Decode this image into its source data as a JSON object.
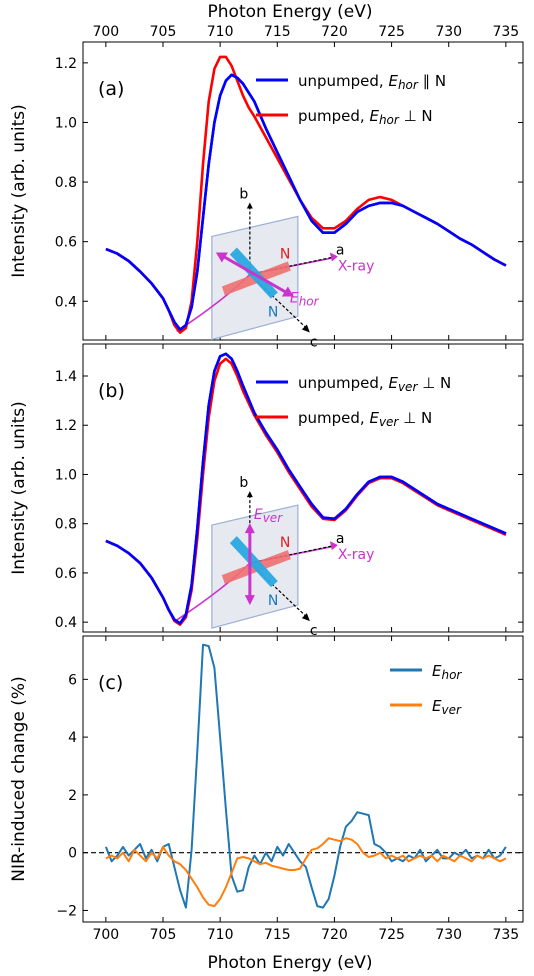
{
  "chart_data": [
    {
      "type": "line",
      "panel_label": "(a)",
      "xlabel_top": "Photon Energy (eV)",
      "ylabel": "Intensity (arb. units)",
      "xlim": [
        698,
        736.5
      ],
      "ylim": [
        0.27,
        1.27
      ],
      "xticks": [
        700,
        705,
        710,
        715,
        720,
        725,
        730,
        735
      ],
      "yticks": [
        0.4,
        0.6,
        0.8,
        1.0,
        1.2
      ],
      "ytick_labels": [
        "0.4",
        "0.6",
        "0.8",
        "1.0",
        "1.2"
      ],
      "legend_position": "top-right",
      "series": [
        {
          "name": "unpumped, Eₕₒᵣ ∥ N",
          "label_main": "unpumped, ",
          "label_italic": "Ehor",
          "label_rel": " ∥ N",
          "color": "#0000ff",
          "x": [
            700,
            701,
            702,
            703,
            704,
            705,
            705.5,
            706,
            706.5,
            707,
            707.5,
            708,
            708.5,
            709,
            709.5,
            710,
            710.5,
            711,
            711.5,
            712,
            712.5,
            713,
            714,
            715,
            716,
            717,
            718,
            719,
            720,
            721,
            722,
            723,
            724,
            725,
            726,
            727,
            728,
            729,
            730,
            731,
            732,
            733,
            734,
            735
          ],
          "y": [
            0.575,
            0.56,
            0.535,
            0.5,
            0.46,
            0.41,
            0.37,
            0.33,
            0.305,
            0.32,
            0.38,
            0.5,
            0.68,
            0.86,
            1.0,
            1.09,
            1.14,
            1.16,
            1.15,
            1.13,
            1.1,
            1.07,
            0.98,
            0.9,
            0.82,
            0.74,
            0.67,
            0.63,
            0.63,
            0.66,
            0.7,
            0.72,
            0.73,
            0.73,
            0.72,
            0.7,
            0.68,
            0.66,
            0.635,
            0.61,
            0.59,
            0.565,
            0.54,
            0.52
          ]
        },
        {
          "name": "pumped, Eₕₒᵣ ⊥ N",
          "label_main": "pumped, ",
          "label_italic": "Ehor",
          "label_rel": " ⊥ N",
          "color": "#ff0000",
          "x": [
            700,
            701,
            702,
            703,
            704,
            705,
            705.5,
            706,
            706.5,
            707,
            707.5,
            708,
            708.5,
            709,
            709.5,
            710,
            710.5,
            711,
            711.5,
            712,
            712.5,
            713,
            714,
            715,
            716,
            717,
            718,
            719,
            720,
            721,
            722,
            723,
            724,
            725,
            726,
            727,
            728,
            729,
            730,
            731,
            732,
            733,
            734,
            735
          ],
          "y": [
            0.575,
            0.56,
            0.535,
            0.5,
            0.46,
            0.41,
            0.37,
            0.32,
            0.295,
            0.31,
            0.4,
            0.6,
            0.86,
            1.07,
            1.18,
            1.22,
            1.22,
            1.19,
            1.14,
            1.09,
            1.05,
            1.02,
            0.95,
            0.88,
            0.81,
            0.74,
            0.68,
            0.645,
            0.645,
            0.67,
            0.71,
            0.74,
            0.75,
            0.74,
            0.72,
            0.7,
            0.68,
            0.66,
            0.635,
            0.61,
            0.59,
            0.565,
            0.54,
            0.52
          ]
        }
      ],
      "inset": {
        "labels": [
          "b",
          "a",
          "c",
          "N",
          "N",
          "X-ray"
        ],
        "field_label": "Ehor",
        "field_direction": "horizontal"
      }
    },
    {
      "type": "line",
      "panel_label": "(b)",
      "ylabel": "Intensity (arb. units)",
      "xlim": [
        698,
        736.5
      ],
      "ylim": [
        0.36,
        1.53
      ],
      "xticks": [
        700,
        705,
        710,
        715,
        720,
        725,
        730,
        735
      ],
      "yticks": [
        0.4,
        0.6,
        0.8,
        1.0,
        1.2,
        1.4
      ],
      "ytick_labels": [
        "0.4",
        "0.6",
        "0.8",
        "1.0",
        "1.2",
        "1.4"
      ],
      "legend_position": "top-right",
      "series": [
        {
          "name": "unpumped, Eᵥₑᵣ ⊥ N",
          "label_main": "unpumped, ",
          "label_italic": "Ever",
          "label_rel": " ⊥ N",
          "color": "#0000ff",
          "x": [
            700,
            701,
            702,
            703,
            704,
            705,
            705.5,
            706,
            706.5,
            707,
            707.5,
            708,
            708.5,
            709,
            709.5,
            710,
            710.5,
            711,
            711.5,
            712,
            713,
            714,
            715,
            716,
            717,
            718,
            719,
            720,
            721,
            722,
            723,
            724,
            725,
            726,
            727,
            728,
            729,
            730,
            731,
            732,
            733,
            734,
            735
          ],
          "y": [
            0.73,
            0.71,
            0.68,
            0.64,
            0.58,
            0.5,
            0.45,
            0.41,
            0.395,
            0.43,
            0.55,
            0.78,
            1.05,
            1.28,
            1.42,
            1.48,
            1.49,
            1.47,
            1.42,
            1.36,
            1.25,
            1.17,
            1.1,
            1.02,
            0.95,
            0.88,
            0.825,
            0.82,
            0.86,
            0.92,
            0.97,
            0.99,
            0.99,
            0.97,
            0.94,
            0.91,
            0.88,
            0.86,
            0.84,
            0.82,
            0.8,
            0.78,
            0.76
          ]
        },
        {
          "name": "pumped, Eᵥₑᵣ ⊥ N",
          "label_main": "pumped, ",
          "label_italic": "Ever",
          "label_rel": " ⊥ N",
          "color": "#ff0000",
          "x": [
            700,
            701,
            702,
            703,
            704,
            705,
            705.5,
            706,
            706.5,
            707,
            707.5,
            708,
            708.5,
            709,
            709.5,
            710,
            710.5,
            711,
            711.5,
            712,
            713,
            714,
            715,
            716,
            717,
            718,
            719,
            720,
            721,
            722,
            723,
            724,
            725,
            726,
            727,
            728,
            729,
            730,
            731,
            732,
            733,
            734,
            735
          ],
          "y": [
            0.73,
            0.71,
            0.68,
            0.64,
            0.58,
            0.5,
            0.45,
            0.405,
            0.39,
            0.42,
            0.53,
            0.74,
            1.0,
            1.23,
            1.38,
            1.45,
            1.47,
            1.45,
            1.4,
            1.34,
            1.24,
            1.16,
            1.09,
            1.01,
            0.94,
            0.87,
            0.82,
            0.815,
            0.855,
            0.915,
            0.965,
            0.985,
            0.985,
            0.965,
            0.935,
            0.905,
            0.875,
            0.855,
            0.835,
            0.815,
            0.795,
            0.775,
            0.755
          ]
        }
      ],
      "inset": {
        "labels": [
          "b",
          "a",
          "c",
          "N",
          "N",
          "X-ray"
        ],
        "field_label": "Ever",
        "field_direction": "vertical"
      }
    },
    {
      "type": "line",
      "panel_label": "(c)",
      "xlabel": "Photon Energy (eV)",
      "ylabel": "NIR-induced change (%)",
      "xlim": [
        698,
        736.5
      ],
      "ylim": [
        -2.4,
        7.5
      ],
      "xticks": [
        700,
        705,
        710,
        715,
        720,
        725,
        730,
        735
      ],
      "yticks": [
        -2,
        0,
        2,
        4,
        6
      ],
      "ytick_labels": [
        "−2",
        "0",
        "2",
        "4",
        "6"
      ],
      "zero_line": "dashed",
      "legend_position": "top-right",
      "series": [
        {
          "name": "Ehor",
          "label_italic": "Ehor",
          "color": "#1f77b4",
          "x": [
            700,
            700.5,
            701,
            701.5,
            702,
            702.5,
            703,
            703.5,
            704,
            704.5,
            705,
            705.5,
            706,
            706.5,
            707,
            707.5,
            708,
            708.5,
            709,
            709.5,
            710,
            710.5,
            711,
            711.5,
            712,
            712.5,
            713,
            713.5,
            714,
            714.5,
            715,
            715.5,
            716,
            716.5,
            717,
            717.5,
            718,
            718.5,
            719,
            719.5,
            720,
            720.5,
            721,
            721.5,
            722,
            722.5,
            723,
            723.5,
            724,
            724.5,
            725,
            725.5,
            726,
            726.5,
            727,
            727.5,
            728,
            728.5,
            729,
            729.5,
            730,
            730.5,
            731,
            731.5,
            732,
            732.5,
            733,
            733.5,
            734,
            734.5,
            735
          ],
          "y": [
            0.2,
            -0.3,
            -0.1,
            0.2,
            -0.1,
            0.1,
            0.3,
            -0.2,
            0.1,
            -0.3,
            0.2,
            0.3,
            -0.5,
            -1.3,
            -1.9,
            0.1,
            3.5,
            7.2,
            7.15,
            6.4,
            4.0,
            1.5,
            -0.8,
            -1.35,
            -1.3,
            -0.5,
            -0.1,
            -0.4,
            0.0,
            -0.3,
            0.2,
            -0.1,
            0.3,
            0.0,
            -0.3,
            -0.5,
            -1.2,
            -1.85,
            -1.9,
            -1.6,
            -0.8,
            0.2,
            0.9,
            1.1,
            1.4,
            1.35,
            1.3,
            0.3,
            0.2,
            0.0,
            -0.3,
            -0.2,
            -0.3,
            -0.1,
            -0.2,
            0.1,
            -0.3,
            -0.1,
            0.1,
            -0.2,
            -0.2,
            0.0,
            -0.1,
            0.1,
            -0.2,
            -0.1,
            -0.2,
            0.1,
            -0.2,
            -0.1,
            0.2
          ]
        },
        {
          "name": "Ever",
          "label_italic": "Ever",
          "color": "#ff7f0e",
          "x": [
            700,
            700.5,
            701,
            701.5,
            702,
            702.5,
            703,
            703.5,
            704,
            704.5,
            705,
            705.5,
            706,
            706.5,
            707,
            707.5,
            708,
            708.5,
            709,
            709.5,
            710,
            710.5,
            711,
            711.5,
            712,
            712.5,
            713,
            713.5,
            714,
            714.5,
            715,
            715.5,
            716,
            716.5,
            717,
            717.5,
            718,
            718.5,
            719,
            719.5,
            720,
            720.5,
            721,
            721.5,
            722,
            722.5,
            723,
            723.5,
            724,
            724.5,
            725,
            725.5,
            726,
            726.5,
            727,
            727.5,
            728,
            728.5,
            729,
            729.5,
            730,
            730.5,
            731,
            731.5,
            732,
            732.5,
            733,
            733.5,
            734,
            734.5,
            735
          ],
          "y": [
            -0.2,
            -0.1,
            -0.2,
            0.0,
            -0.3,
            0.1,
            -0.1,
            -0.3,
            0.0,
            -0.2,
            0.2,
            -0.1,
            -0.3,
            -0.4,
            -0.6,
            -0.9,
            -1.2,
            -1.55,
            -1.8,
            -1.85,
            -1.6,
            -1.2,
            -0.7,
            -0.2,
            -0.15,
            -0.2,
            -0.3,
            -0.4,
            -0.35,
            -0.45,
            -0.5,
            -0.55,
            -0.6,
            -0.6,
            -0.55,
            -0.2,
            0.1,
            0.15,
            0.3,
            0.5,
            0.45,
            0.4,
            0.5,
            0.45,
            0.3,
            0.0,
            -0.15,
            -0.1,
            0.0,
            -0.2,
            -0.1,
            -0.2,
            -0.1,
            -0.3,
            -0.2,
            -0.1,
            -0.2,
            -0.1,
            -0.3,
            -0.1,
            -0.2,
            -0.3,
            -0.1,
            -0.2,
            -0.3,
            -0.1,
            -0.2,
            -0.1,
            -0.2,
            -0.3,
            -0.2
          ]
        }
      ]
    }
  ]
}
